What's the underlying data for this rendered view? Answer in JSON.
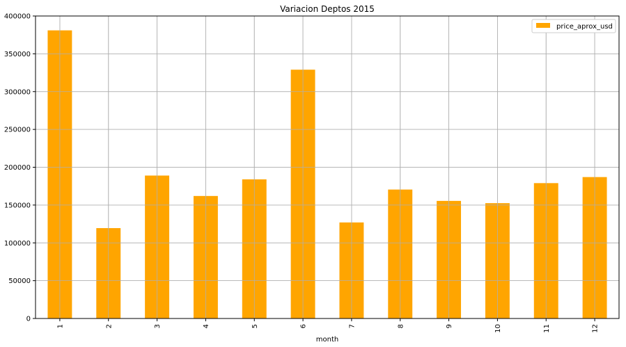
{
  "chart_data": {
    "type": "bar",
    "title": "Variacion Deptos 2015",
    "xlabel": "month",
    "ylabel": "",
    "categories": [
      "1",
      "2",
      "3",
      "4",
      "5",
      "6",
      "7",
      "8",
      "9",
      "10",
      "11",
      "12"
    ],
    "series": [
      {
        "name": "price_aprox_usd",
        "values": [
          381000,
          119500,
          189000,
          162000,
          184000,
          329000,
          127000,
          170500,
          155500,
          152500,
          179000,
          187000
        ]
      }
    ],
    "ylim": [
      0,
      400000
    ],
    "yticks": [
      0,
      50000,
      100000,
      150000,
      200000,
      250000,
      300000,
      350000,
      400000
    ],
    "grid": true,
    "legend_position": "top-right",
    "bar_color": "#ffa500",
    "grid_color": "#b0b0b0",
    "axis_color": "#000000"
  }
}
